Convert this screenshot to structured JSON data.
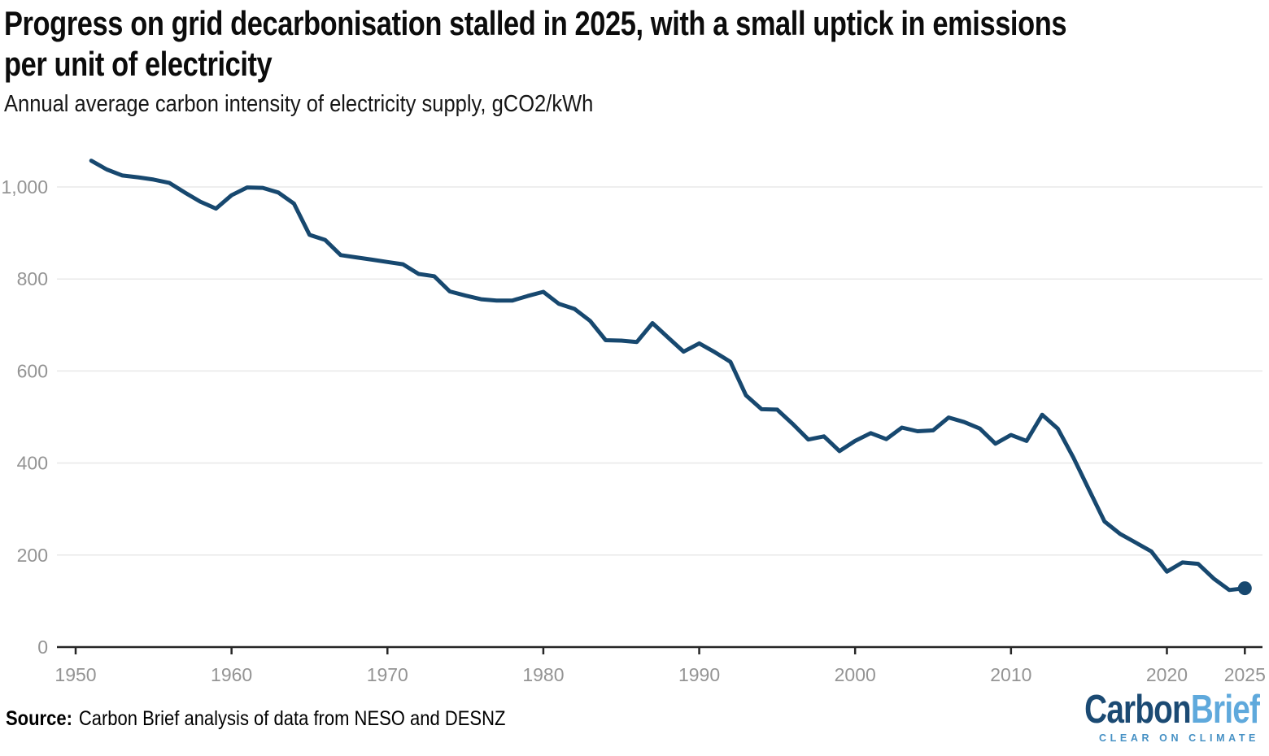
{
  "header": {
    "title_line1": "Progress on grid decarbonisation stalled in 2025, with a small uptick in emissions",
    "title_line2": "per unit of electricity",
    "subtitle": "Annual average carbon intensity of electricity supply, gCO2/kWh"
  },
  "source": {
    "label": "Source:",
    "text": "Carbon Brief analysis of data from NESO and DESNZ"
  },
  "logo": {
    "word_dark": "Carbon",
    "word_light": "Brief",
    "tagline": "CLEAR ON CLIMATE",
    "color_dark": "#1b4a73",
    "color_light": "#5fa9dc",
    "color_tagline": "#4590c4"
  },
  "colors": {
    "line": "#17486f",
    "gridline": "#e9e9e9",
    "axis": "#262626",
    "tick_label": "#949494",
    "background": "#ffffff"
  },
  "chart_data": {
    "type": "line",
    "title": "Progress on grid decarbonisation stalled in 2025, with a small uptick in emissions per unit of electricity",
    "subtitle": "Annual average carbon intensity of electricity supply, gCO2/kWh",
    "xlabel": "",
    "ylabel": "gCO2/kWh",
    "xlim": [
      1950,
      2025
    ],
    "ylim": [
      0,
      1130
    ],
    "yticks": [
      0,
      200,
      400,
      600,
      800,
      1000
    ],
    "ytick_labels": [
      "0",
      "200",
      "400",
      "600",
      "800",
      "1,000"
    ],
    "xticks": [
      1950,
      1960,
      1970,
      1980,
      1990,
      2000,
      2010,
      2020,
      2025
    ],
    "xtick_labels": [
      "1950",
      "1960",
      "1970",
      "1980",
      "1990",
      "2000",
      "2010",
      "2020",
      "2025"
    ],
    "grid": "horizontal-only",
    "legend": "none",
    "line_color": "#17486f",
    "last_point_marker": true,
    "series": [
      {
        "name": "Annual average carbon intensity of electricity supply (gCO2/kWh)",
        "x": [
          1951,
          1952,
          1953,
          1954,
          1955,
          1956,
          1957,
          1958,
          1959,
          1960,
          1961,
          1962,
          1963,
          1964,
          1965,
          1966,
          1967,
          1968,
          1969,
          1970,
          1971,
          1972,
          1973,
          1974,
          1975,
          1976,
          1977,
          1978,
          1979,
          1980,
          1981,
          1982,
          1983,
          1984,
          1985,
          1986,
          1987,
          1988,
          1989,
          1990,
          1991,
          1992,
          1993,
          1994,
          1995,
          1996,
          1997,
          1998,
          1999,
          2000,
          2001,
          2002,
          2003,
          2004,
          2005,
          2006,
          2007,
          2008,
          2009,
          2010,
          2011,
          2012,
          2013,
          2014,
          2015,
          2016,
          2017,
          2018,
          2019,
          2020,
          2021,
          2022,
          2023,
          2024,
          2025
        ],
        "values": [
          1057,
          1038,
          1025,
          1021,
          1016,
          1009,
          988,
          968,
          953,
          982,
          999,
          998,
          988,
          964,
          896,
          885,
          852,
          847,
          842,
          837,
          832,
          811,
          806,
          773,
          764,
          756,
          753,
          753,
          763,
          772,
          746,
          735,
          709,
          667,
          666,
          663,
          704,
          673,
          642,
          660,
          641,
          620,
          547,
          517,
          516,
          485,
          451,
          458,
          426,
          448,
          465,
          452,
          477,
          469,
          471,
          499,
          489,
          475,
          442,
          461,
          448,
          505,
          475,
          412,
          342,
          273,
          246,
          227,
          208,
          164,
          184,
          181,
          149,
          124,
          128
        ]
      }
    ]
  }
}
